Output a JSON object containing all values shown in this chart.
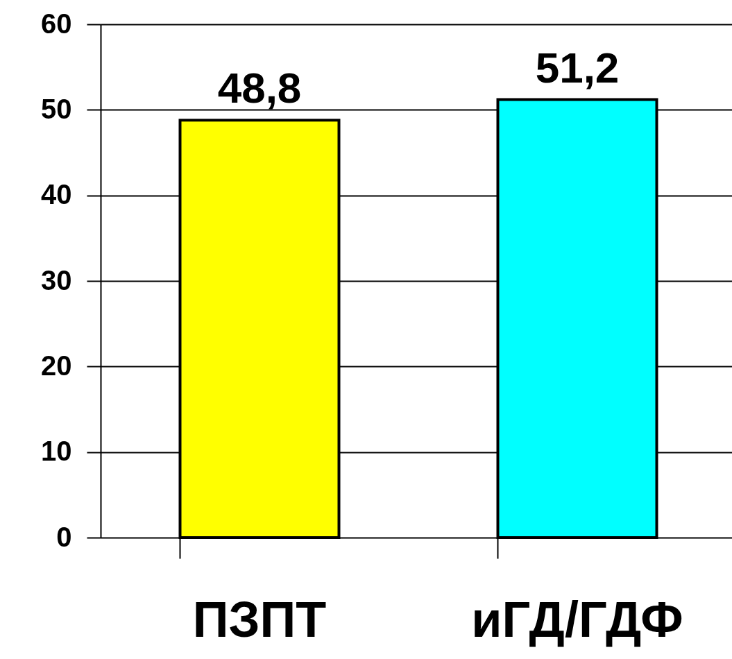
{
  "chart_data": {
    "type": "bar",
    "categories": [
      "ПЗПТ",
      "иГД/ГДФ"
    ],
    "values": [
      48.8,
      51.2
    ],
    "colors": [
      "#ffff00",
      "#00ffff"
    ],
    "value_labels": [
      "48,8",
      "51,2"
    ],
    "ylim": [
      0,
      60
    ],
    "yticks": [
      0,
      10,
      20,
      30,
      40,
      50,
      60
    ],
    "grid": "y",
    "legend": false
  }
}
